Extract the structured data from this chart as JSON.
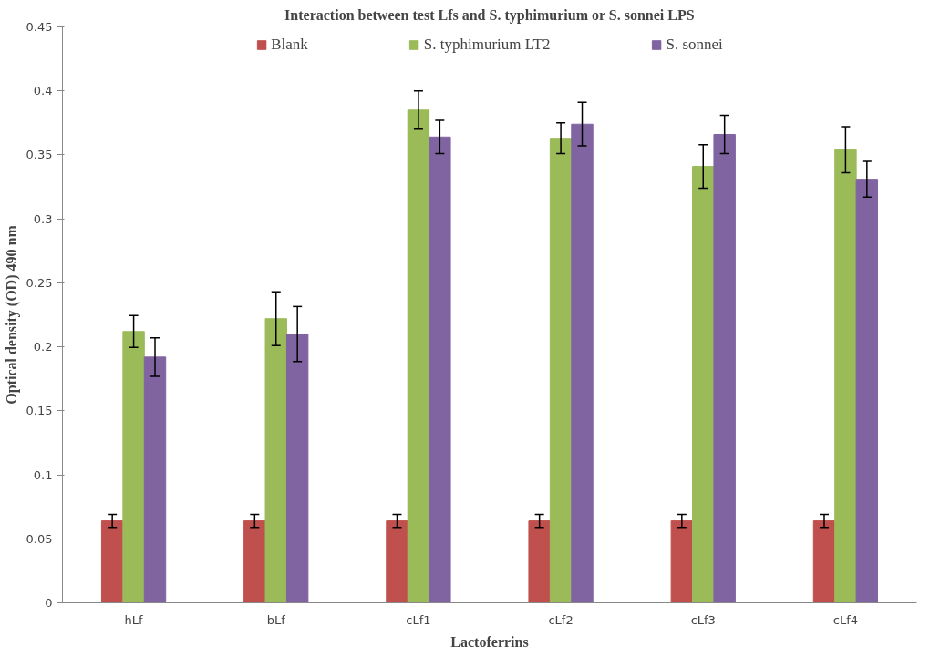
{
  "chart_data": {
    "type": "bar",
    "title": "Interaction between test Lfs and S. typhimurium or S. sonnei LPS",
    "xlabel": "Lactoferrins",
    "ylabel": "Optical density (OD) 490 nm",
    "categories": [
      "hLf",
      "bLf",
      "cLf1",
      "cLf2",
      "cLf3",
      "cLf4"
    ],
    "series": [
      {
        "name": "Blank",
        "color": "#c0504d",
        "values": [
          0.064,
          0.064,
          0.064,
          0.064,
          0.064,
          0.064
        ],
        "errors": [
          0.005,
          0.005,
          0.005,
          0.005,
          0.005,
          0.005
        ]
      },
      {
        "name": "S. typhimurium LT2",
        "color": "#9bbb59",
        "values": [
          0.212,
          0.222,
          0.385,
          0.363,
          0.341,
          0.354
        ],
        "errors": [
          0.0125,
          0.021,
          0.015,
          0.012,
          0.017,
          0.018
        ]
      },
      {
        "name": "S. sonnei",
        "color": "#8064a2",
        "values": [
          0.192,
          0.21,
          0.364,
          0.374,
          0.366,
          0.331
        ],
        "errors": [
          0.015,
          0.0215,
          0.013,
          0.017,
          0.015,
          0.014
        ]
      }
    ],
    "ylim": [
      0,
      0.45
    ],
    "yticks": [
      0,
      0.05,
      0.1,
      0.15,
      0.2,
      0.25,
      0.3,
      0.35,
      0.4,
      0.45
    ],
    "grid": false,
    "legend": "top"
  }
}
